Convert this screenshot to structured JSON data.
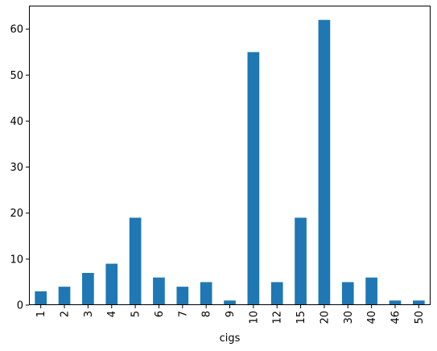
{
  "chart_data": {
    "type": "bar",
    "xlabel": "cigs",
    "ylabel": "",
    "categories": [
      "1",
      "2",
      "3",
      "4",
      "5",
      "6",
      "7",
      "8",
      "9",
      "10",
      "12",
      "15",
      "20",
      "30",
      "40",
      "46",
      "50"
    ],
    "values": [
      3,
      4,
      7,
      9,
      19,
      6,
      4,
      5,
      1,
      55,
      5,
      19,
      62,
      5,
      6,
      1,
      1
    ],
    "ylim": [
      0,
      65.1
    ],
    "yticks": [
      0,
      10,
      20,
      30,
      40,
      50,
      60
    ],
    "bar_color": "#1f77b4",
    "grid": false,
    "legend": "none"
  }
}
